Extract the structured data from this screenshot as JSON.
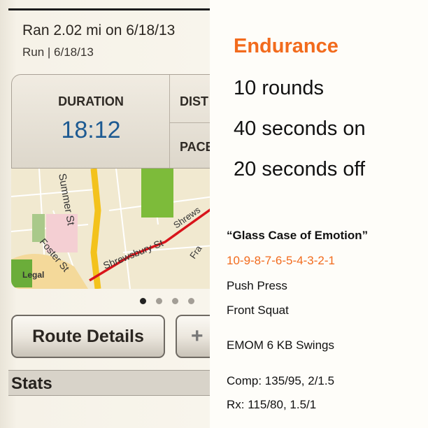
{
  "app": {
    "title": "Ran 2.02 mi on 6/18/13",
    "subtitle": "Run | 6/18/13",
    "stats": [
      {
        "label": "DURATION",
        "value": "18:12"
      },
      {
        "label": "DIST"
      },
      {
        "label": "PACE"
      }
    ],
    "map_labels": [
      "Summer St",
      "Shrewsbury St",
      "Shrews",
      "Foster St",
      "Fra",
      "Legal"
    ],
    "page_dots": {
      "count": 4,
      "active": 0
    },
    "route_details_label": "Route Details",
    "add_label": "+",
    "section_title": "Stats"
  },
  "workout": {
    "heading": "Endurance",
    "lines": [
      "10 rounds",
      "40 seconds on",
      "20 seconds off"
    ],
    "name": "“Glass Case of Emotion”",
    "reps": "10-9-8-7-6-5-4-3-2-1",
    "exercises": [
      "Push Press",
      "Front Squat",
      "EMOM 6 KB Swings"
    ],
    "comp": "Comp: 135/95, 2/1.5",
    "rx": "Rx: 115/80, 1.5/1"
  },
  "colors": {
    "accent": "#f26b1d",
    "duration": "#1d5a92",
    "route": "#d8141b"
  }
}
